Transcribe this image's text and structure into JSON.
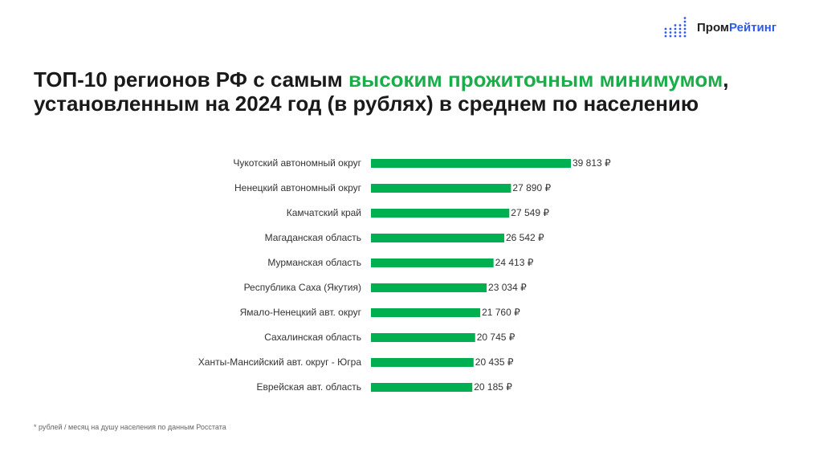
{
  "logo": {
    "part1": "Пром",
    "part2": "Рейтинг",
    "color": "#2f5bea"
  },
  "title": {
    "part1": "ТОП-10 регионов РФ с самым ",
    "highlight": "высоким прожиточным минимумом",
    "part2": ", установленным на 2024 год (в рублях) в среднем по населению",
    "highlight_color": "#1aae4b"
  },
  "footnote": "* рублей / месяц на душу населения по данным Росстата",
  "chart_data": {
    "type": "bar",
    "orientation": "horizontal",
    "categories": [
      "Чукотский автономный округ",
      "Ненецкий автономный округ",
      "Камчатский край",
      "Магаданская область",
      "Мурманская область",
      "Республика Саха (Якутия)",
      "Ямало-Ненецкий авт. округ",
      "Сахалинская область",
      "Ханты-Мансийский авт. округ - Югра",
      "Еврейская авт. область"
    ],
    "values": [
      39813,
      27890,
      27549,
      26542,
      24413,
      23034,
      21760,
      20745,
      20435,
      20185
    ],
    "labels": [
      "39 813 ₽",
      "27 890 ₽",
      "27 549 ₽",
      "26 542 ₽",
      "24 413 ₽",
      "23 034 ₽",
      "21 760 ₽",
      "20 745 ₽",
      "20 435 ₽",
      "20 185 ₽"
    ],
    "bar_color": "#00b050",
    "grid": false
  }
}
